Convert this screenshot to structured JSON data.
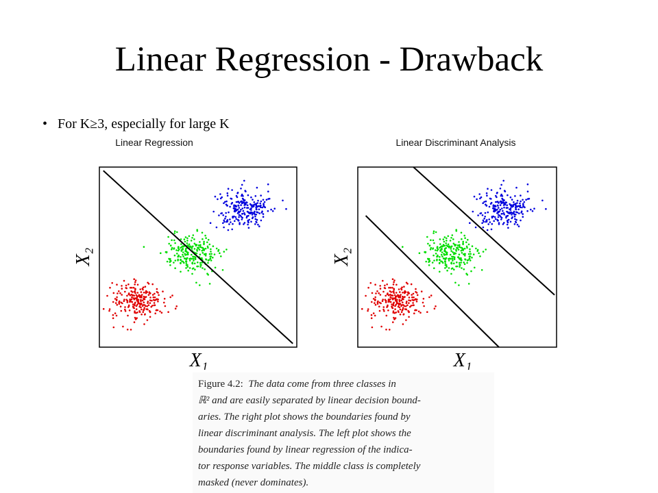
{
  "slide": {
    "title": "Linear Regression - Drawback",
    "bullet": "For K≥3, especially for large K"
  },
  "chart_data": [
    {
      "type": "scatter",
      "title": "Linear Regression",
      "xlabel": "X₁",
      "ylabel": "X₂",
      "grid": false,
      "series": [
        {
          "color": "#e00000",
          "center": [
            0.2,
            0.26
          ],
          "spread": [
            0.09,
            0.07
          ]
        },
        {
          "color": "#00dd00",
          "center": [
            0.46,
            0.52
          ],
          "spread": [
            0.09,
            0.07
          ]
        },
        {
          "color": "#0000dd",
          "center": [
            0.73,
            0.77
          ],
          "spread": [
            0.09,
            0.07
          ]
        }
      ],
      "boundaries": [
        {
          "from": [
            0.02,
            0.98
          ],
          "to": [
            0.98,
            0.02
          ]
        }
      ]
    },
    {
      "type": "scatter",
      "title": "Linear Discriminant Analysis",
      "xlabel": "X₁",
      "ylabel": "X₂",
      "grid": false,
      "series": [
        {
          "color": "#e00000",
          "center": [
            0.2,
            0.26
          ],
          "spread": [
            0.09,
            0.07
          ]
        },
        {
          "color": "#00dd00",
          "center": [
            0.46,
            0.52
          ],
          "spread": [
            0.09,
            0.07
          ]
        },
        {
          "color": "#0000dd",
          "center": [
            0.73,
            0.77
          ],
          "spread": [
            0.09,
            0.07
          ]
        }
      ],
      "boundaries": [
        {
          "from": [
            0.04,
            0.73
          ],
          "to": [
            0.71,
            0.0
          ]
        },
        {
          "from": [
            0.28,
            1.0
          ],
          "to": [
            0.99,
            0.29
          ]
        }
      ]
    }
  ],
  "caption": {
    "label": "Figure 4.2:",
    "lines": [
      "The data come from three classes in",
      "ℝ² and are easily separated by linear decision bound-",
      "aries. The right plot shows the boundaries found by",
      "linear discriminant analysis. The left plot shows the",
      "boundaries found by linear regression of the indica-",
      "tor response variables. The middle class is completely",
      "masked (never dominates)."
    ]
  }
}
